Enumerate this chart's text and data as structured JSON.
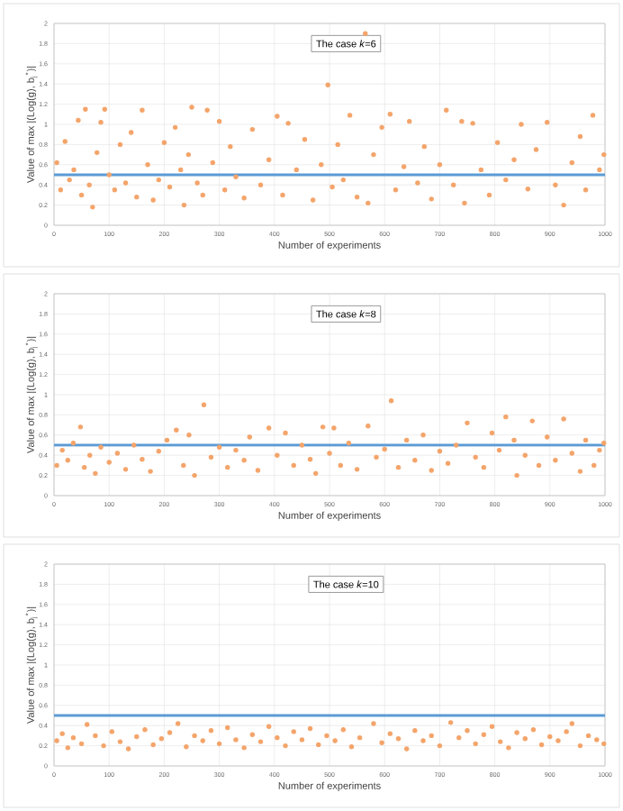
{
  "chart_data": [
    {
      "type": "scatter",
      "xlabel": "Number of experiments",
      "ylabel": "Value of max |(Log(g), b$_{j}$$^{*}$)|",
      "annotations": [
        "The case *k*=6"
      ],
      "color": "#f4a46a",
      "marker": "circle",
      "grid": true,
      "xlim": [
        0,
        1000
      ],
      "ylim": [
        0,
        2
      ],
      "xticks": [
        0,
        100,
        200,
        300,
        400,
        500,
        600,
        700,
        800,
        900,
        1000
      ],
      "yticks": [
        0,
        0.2,
        0.4,
        0.6,
        0.8,
        1,
        1.2,
        1.4,
        1.6,
        1.8,
        2
      ],
      "ref_lines": [
        {
          "axis": "y",
          "value": 0.5,
          "color": "#5b9bd5"
        }
      ],
      "x": [
        5,
        12,
        20,
        28,
        36,
        44,
        50,
        57,
        64,
        70,
        78,
        85,
        92,
        100,
        110,
        120,
        130,
        140,
        150,
        160,
        170,
        180,
        190,
        200,
        210,
        220,
        230,
        236,
        244,
        250,
        260,
        270,
        278,
        288,
        300,
        310,
        320,
        330,
        345,
        360,
        375,
        390,
        405,
        415,
        425,
        440,
        455,
        470,
        485,
        497,
        505,
        515,
        525,
        537,
        550,
        565,
        570,
        580,
        595,
        610,
        620,
        635,
        645,
        660,
        672,
        685,
        700,
        712,
        725,
        740,
        745,
        760,
        775,
        790,
        805,
        820,
        835,
        848,
        860,
        875,
        895,
        910,
        925,
        940,
        955,
        965,
        978,
        990,
        998
      ],
      "values": [
        0.62,
        0.35,
        0.83,
        0.45,
        0.55,
        1.04,
        0.3,
        1.15,
        0.4,
        0.18,
        0.72,
        1.02,
        1.15,
        0.5,
        0.35,
        0.8,
        0.42,
        0.92,
        0.28,
        1.14,
        0.6,
        0.25,
        0.45,
        0.82,
        0.38,
        0.97,
        0.55,
        0.2,
        0.7,
        1.17,
        0.42,
        0.3,
        1.14,
        0.62,
        1.03,
        0.35,
        0.78,
        0.48,
        0.27,
        0.95,
        0.4,
        0.65,
        1.08,
        0.3,
        1.01,
        0.55,
        0.85,
        0.25,
        0.6,
        1.39,
        0.38,
        0.8,
        0.45,
        1.09,
        0.28,
        1.9,
        0.22,
        0.7,
        0.97,
        1.1,
        0.35,
        0.58,
        1.03,
        0.42,
        0.78,
        0.26,
        0.6,
        1.14,
        0.4,
        1.03,
        0.22,
        1.01,
        0.55,
        0.3,
        0.82,
        0.45,
        0.65,
        1.0,
        0.36,
        0.75,
        1.02,
        0.4,
        0.2,
        0.62,
        0.88,
        0.35,
        1.09,
        0.55,
        0.7
      ]
    },
    {
      "type": "scatter",
      "xlabel": "Number of experiments",
      "ylabel": "Value of max |(Log(g), b$_{j}$$^{*}$)|",
      "annotations": [
        "The case *k*=8"
      ],
      "color": "#f4a46a",
      "marker": "circle",
      "grid": true,
      "xlim": [
        0,
        1000
      ],
      "ylim": [
        0,
        2
      ],
      "xticks": [
        0,
        100,
        200,
        300,
        400,
        500,
        600,
        700,
        800,
        900,
        1000
      ],
      "yticks": [
        0,
        0.2,
        0.4,
        0.6,
        0.8,
        1,
        1.2,
        1.4,
        1.6,
        1.8,
        2
      ],
      "ref_lines": [
        {
          "axis": "y",
          "value": 0.5,
          "color": "#5b9bd5"
        }
      ],
      "x": [
        5,
        15,
        25,
        35,
        48,
        55,
        65,
        75,
        85,
        100,
        115,
        130,
        145,
        160,
        175,
        190,
        205,
        222,
        235,
        245,
        255,
        272,
        285,
        300,
        315,
        330,
        345,
        355,
        370,
        390,
        405,
        420,
        435,
        450,
        465,
        475,
        488,
        500,
        508,
        520,
        535,
        550,
        570,
        585,
        600,
        612,
        625,
        640,
        655,
        670,
        685,
        700,
        715,
        730,
        750,
        765,
        780,
        795,
        808,
        820,
        835,
        840,
        855,
        868,
        880,
        895,
        910,
        925,
        940,
        955,
        965,
        980,
        990,
        998
      ],
      "values": [
        0.3,
        0.45,
        0.35,
        0.52,
        0.68,
        0.28,
        0.4,
        0.22,
        0.48,
        0.33,
        0.42,
        0.26,
        0.5,
        0.36,
        0.24,
        0.44,
        0.55,
        0.65,
        0.3,
        0.6,
        0.2,
        0.9,
        0.38,
        0.48,
        0.28,
        0.45,
        0.35,
        0.58,
        0.25,
        0.67,
        0.4,
        0.62,
        0.3,
        0.5,
        0.36,
        0.22,
        0.68,
        0.42,
        0.67,
        0.3,
        0.52,
        0.26,
        0.69,
        0.38,
        0.46,
        0.94,
        0.28,
        0.55,
        0.35,
        0.6,
        0.25,
        0.44,
        0.32,
        0.5,
        0.72,
        0.38,
        0.28,
        0.62,
        0.45,
        0.78,
        0.55,
        0.2,
        0.4,
        0.74,
        0.3,
        0.58,
        0.35,
        0.76,
        0.42,
        0.24,
        0.55,
        0.3,
        0.45,
        0.52
      ]
    },
    {
      "type": "scatter",
      "xlabel": "Number of experiments",
      "ylabel": "Value of max |(Log(g), b$_{j}$$^{*}$)|",
      "annotations": [
        "The case *k*=10"
      ],
      "color": "#f4a46a",
      "marker": "circle",
      "grid": true,
      "xlim": [
        0,
        1000
      ],
      "ylim": [
        0,
        2
      ],
      "xticks": [
        0,
        100,
        200,
        300,
        400,
        500,
        600,
        700,
        800,
        900,
        1000
      ],
      "yticks": [
        0,
        0.2,
        0.4,
        0.6,
        0.8,
        1,
        1.2,
        1.4,
        1.6,
        1.8,
        2
      ],
      "ref_lines": [
        {
          "axis": "y",
          "value": 0.5,
          "color": "#5b9bd5"
        }
      ],
      "x": [
        5,
        15,
        25,
        35,
        50,
        60,
        75,
        90,
        105,
        120,
        135,
        150,
        165,
        180,
        195,
        210,
        225,
        240,
        255,
        270,
        285,
        300,
        315,
        330,
        345,
        360,
        375,
        390,
        405,
        420,
        435,
        450,
        465,
        480,
        495,
        510,
        525,
        540,
        555,
        580,
        595,
        610,
        625,
        640,
        655,
        670,
        685,
        700,
        720,
        735,
        750,
        765,
        780,
        795,
        810,
        825,
        840,
        855,
        870,
        885,
        900,
        915,
        930,
        940,
        955,
        970,
        985,
        998
      ],
      "values": [
        0.25,
        0.32,
        0.18,
        0.28,
        0.22,
        0.41,
        0.3,
        0.2,
        0.34,
        0.24,
        0.17,
        0.29,
        0.36,
        0.21,
        0.27,
        0.33,
        0.42,
        0.19,
        0.3,
        0.25,
        0.35,
        0.22,
        0.38,
        0.26,
        0.18,
        0.31,
        0.24,
        0.39,
        0.28,
        0.2,
        0.34,
        0.26,
        0.37,
        0.21,
        0.3,
        0.25,
        0.36,
        0.19,
        0.28,
        0.42,
        0.23,
        0.32,
        0.27,
        0.17,
        0.35,
        0.25,
        0.3,
        0.2,
        0.43,
        0.28,
        0.35,
        0.22,
        0.31,
        0.39,
        0.24,
        0.18,
        0.33,
        0.27,
        0.36,
        0.21,
        0.29,
        0.25,
        0.34,
        0.42,
        0.2,
        0.3,
        0.26,
        0.22
      ]
    }
  ]
}
